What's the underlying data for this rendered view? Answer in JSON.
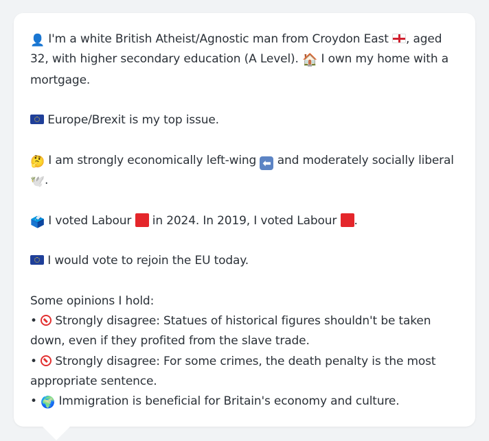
{
  "profile": {
    "intro": {
      "person_icon": "👤",
      "text_a": "I'm a white British Atheist/Agnostic man from Croydon East",
      "flag_icon": "england-flag",
      "text_b": ", aged 32, with higher secondary education (A Level).",
      "home_icon": "🏠",
      "text_c": " I own my home with a mortgage."
    },
    "top_issue": {
      "flag_icon": "eu-flag",
      "text": " Europe/Brexit is my top issue."
    },
    "ideology": {
      "thinking_icon": "🤔",
      "text_a": " I am strongly economically left-wing",
      "arrow_icon": "⬅",
      "text_b": " and moderately socially liberal",
      "dove_icon": "🕊️",
      "text_c": "."
    },
    "votes": {
      "ballot_icon": "🗳️",
      "text_a": " I voted Labour",
      "text_b": " in 2024. In 2019, I voted Labour",
      "text_c": ".",
      "labour_color": "#e4262b"
    },
    "eu_vote": {
      "flag_icon": "eu-flag",
      "text": " I would vote to rejoin the EU today."
    },
    "opinions": {
      "heading": "Some opinions I hold:",
      "bullet": "•",
      "items": [
        {
          "icon": "no-entry-icon",
          "text": " Strongly disagree: Statues of historical figures shouldn't be taken down, even if they profited from the slave trade."
        },
        {
          "icon": "no-entry-icon",
          "text": " Strongly disagree: For some crimes, the death penalty is the most appropriate sentence."
        },
        {
          "icon": "🌍",
          "text": " Immigration is beneficial for Britain's economy and culture."
        }
      ]
    }
  },
  "colors": {
    "background": "#f1f3f5",
    "card": "#ffffff",
    "text": "#2b3138",
    "eu_blue": "#1f3f99",
    "no_entry_red": "#e23030"
  }
}
